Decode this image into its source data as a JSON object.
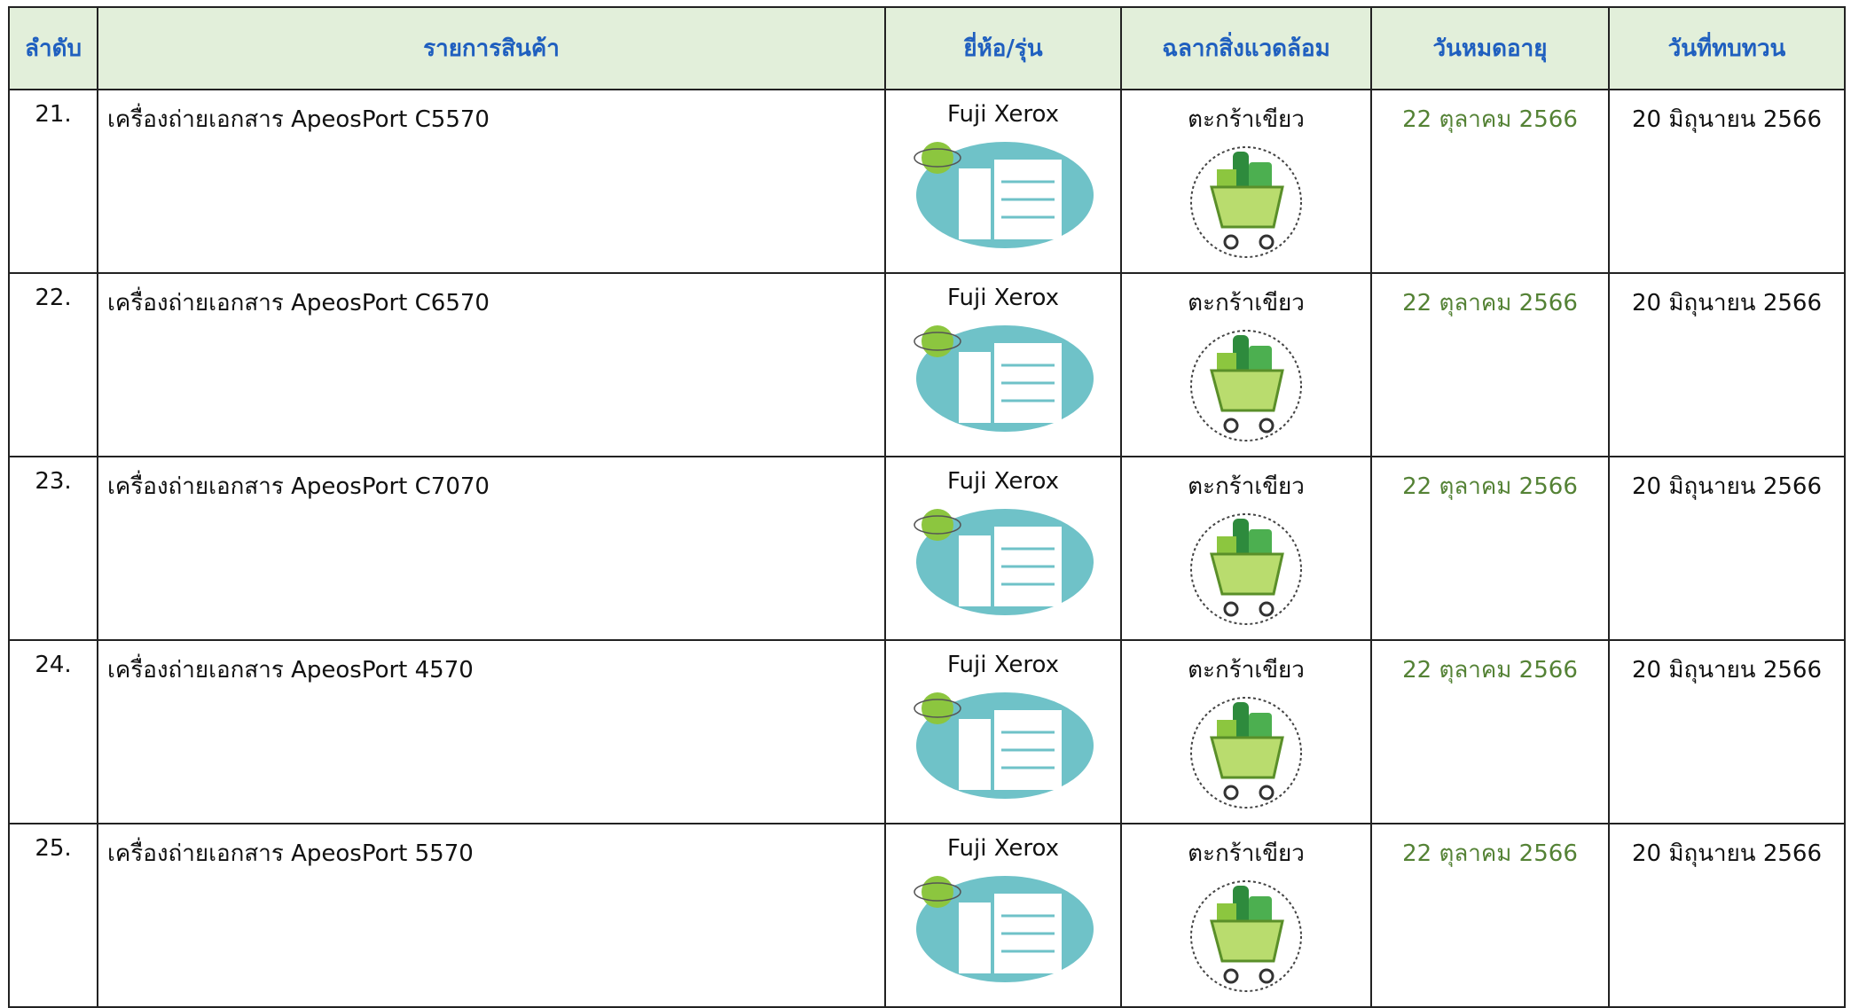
{
  "table": {
    "header": [
      "ลำดับ",
      "รายการสินค้า",
      "ยี่ห้อ/รุ่น",
      "ฉลากสิ่งแวดล้อม",
      "วันหมดอายุ",
      "วันที่ทบทวน"
    ],
    "rows": [
      [
        "21.",
        "เครื่องถ่ายเอกสาร ApeosPort C5570",
        "Fuji Xerox",
        "ตะกร้าเขียว",
        "22 ตุลาคม 2566",
        "20 มิถุนายน 2566"
      ],
      [
        "22.",
        "เครื่องถ่ายเอกสาร ApeosPort C6570",
        "Fuji Xerox",
        "ตะกร้าเขียว",
        "22 ตุลาคม 2566",
        "20 มิถุนายน 2566"
      ],
      [
        "23.",
        "เครื่องถ่ายเอกสาร ApeosPort C7070",
        "Fuji Xerox",
        "ตะกร้าเขียว",
        "22 ตุลาคม 2566",
        "20 มิถุนายน 2566"
      ],
      [
        "24.",
        "เครื่องถ่ายเอกสาร ApeosPort 4570",
        "Fuji Xerox",
        "ตะกร้าเขียว",
        "22 ตุลาคม 2566",
        "20 มิถุนายน 2566"
      ],
      [
        "25.",
        "เครื่องถ่ายเอกสาร ApeosPort 5570",
        "Fuji Xerox",
        "ตะกร้าเขียว",
        "22 ตุลาคม 2566",
        "20 มิถุนายน 2566"
      ]
    ]
  }
}
